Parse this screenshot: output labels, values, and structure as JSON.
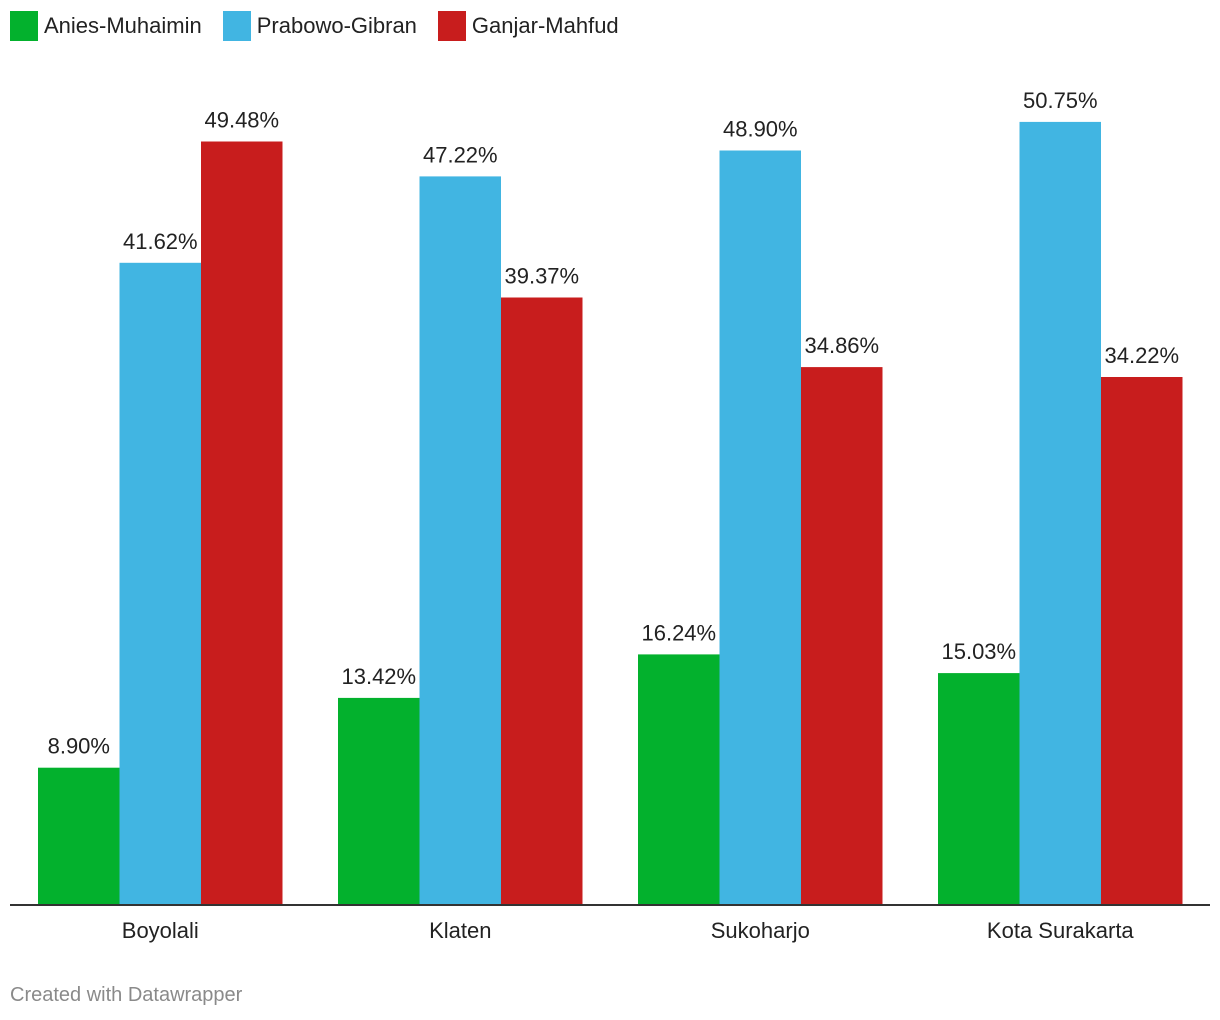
{
  "chart_data": {
    "type": "bar",
    "categories": [
      "Boyolali",
      "Klaten",
      "Sukoharjo",
      "Kota Surakarta"
    ],
    "series": [
      {
        "name": "Anies-Muhaimin",
        "color": "#03b12d",
        "values": [
          8.9,
          13.42,
          16.24,
          15.03
        ],
        "labels": [
          "8.90%",
          "13.42%",
          "16.24%",
          "15.03%"
        ]
      },
      {
        "name": "Prabowo-Gibran",
        "color": "#41b5e2",
        "values": [
          41.62,
          47.22,
          48.9,
          50.75
        ],
        "labels": [
          "41.62%",
          "47.22%",
          "48.90%",
          "50.75%"
        ]
      },
      {
        "name": "Ganjar-Mahfud",
        "color": "#c81d1d",
        "values": [
          49.48,
          39.37,
          34.86,
          34.22
        ],
        "labels": [
          "49.48%",
          "39.37%",
          "34.86%",
          "34.22%"
        ]
      }
    ],
    "title": "",
    "xlabel": "",
    "ylabel": "",
    "ylim": [
      0,
      55
    ],
    "grid": false,
    "legend": "top-left"
  },
  "footer": {
    "credit": "Created with Datawrapper"
  }
}
